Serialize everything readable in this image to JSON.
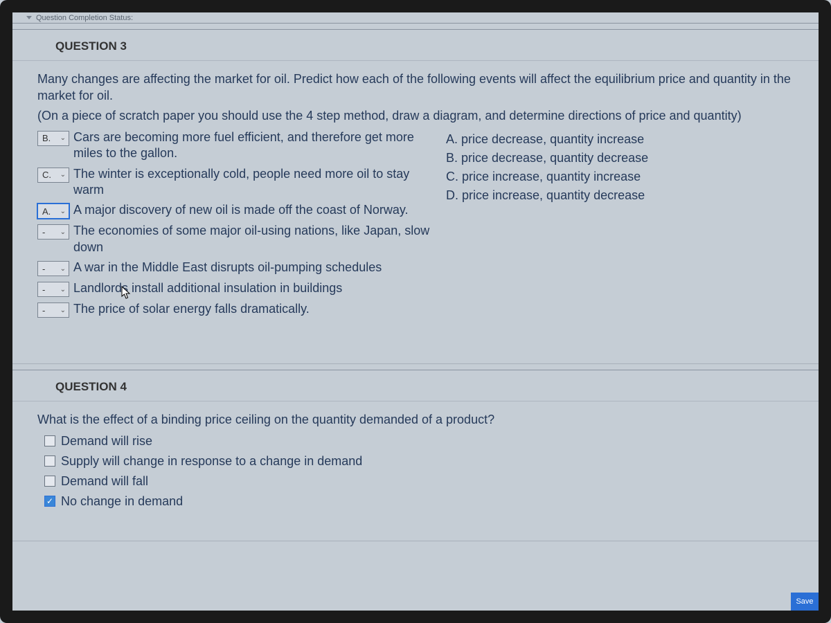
{
  "topbar": {
    "status_text": "Question Completion Status:"
  },
  "q3": {
    "title": "QUESTION 3",
    "prompt1": "Many changes are affecting the market for oil. Predict how each of the following events will affect the equilibrium price and quantity in the market for oil.",
    "prompt2": "(On a piece of scratch paper you should use the 4 step method, draw a diagram, and determine directions of price and quantity)",
    "items": [
      {
        "sel": "B.",
        "text": "Cars are becoming more fuel efficient, and therefore get more miles to the gallon.",
        "highlight": false
      },
      {
        "sel": "C.",
        "text": "The winter is exceptionally cold, people need more oil to stay warm",
        "highlight": false
      },
      {
        "sel": "A.",
        "text": "A major discovery of new oil is made off the coast of Norway.",
        "highlight": true
      },
      {
        "sel": "-",
        "text": "The economies of some major oil-using nations, like Japan, slow down",
        "highlight": false
      },
      {
        "sel": "-",
        "text": "A war in the Middle East disrupts oil-pumping schedules",
        "highlight": false
      },
      {
        "sel": "-",
        "text": "Landlords install additional insulation in buildings",
        "highlight": false
      },
      {
        "sel": "-",
        "text": "The price of solar energy falls dramatically.",
        "highlight": false
      }
    ],
    "options": [
      "A. price decrease, quantity increase",
      "B. price decrease, quantity decrease",
      "C. price increase, quantity increase",
      "D. price increase, quantity decrease"
    ]
  },
  "q4": {
    "title": "QUESTION 4",
    "prompt": "What is the effect of a binding price ceiling on the quantity demanded of a product?",
    "choices": [
      {
        "label": "Demand will rise",
        "checked": false
      },
      {
        "label": "Supply will change in response to a change in demand",
        "checked": false
      },
      {
        "label": "Demand will fall",
        "checked": false
      },
      {
        "label": "No change in demand",
        "checked": true
      }
    ]
  },
  "bottom_badge": "Save"
}
